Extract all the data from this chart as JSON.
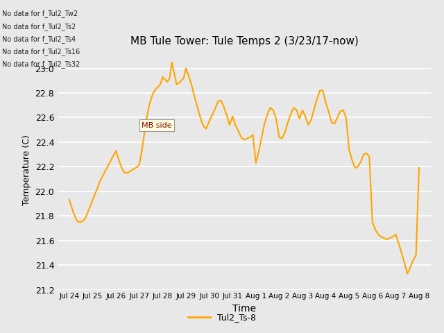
{
  "title": "MB Tule Tower: Tule Temps 2 (3/23/17-now)",
  "xlabel": "Time",
  "ylabel": "Temperature (C)",
  "line_color": "#FFA500",
  "line_label": "Tul2_Ts-8",
  "bg_color": "#e8e8e8",
  "ylim": [
    21.2,
    23.15
  ],
  "yticks": [
    21.2,
    21.4,
    21.6,
    21.8,
    22.0,
    22.2,
    22.4,
    22.6,
    22.8,
    23.0
  ],
  "no_data_labels": [
    "No data for f_Tul2_Tw2",
    "No data for f_Tul2_Ts2",
    "No data for f_Tul2_Ts4",
    "No data for f_Tul2_Ts16",
    "No data for f_Tul2_Ts32"
  ],
  "tooltip_text": "MB side",
  "x_tick_labels": [
    "Jul 24",
    "Jul 25",
    "Jul 26",
    "Jul 27",
    "Jul 28",
    "Jul 29",
    "Jul 30",
    "Jul 31",
    "Aug 1",
    "Aug 2",
    "Aug 3",
    "Aug 4",
    "Aug 5",
    "Aug 6",
    "Aug 7",
    "Aug 8"
  ],
  "x_fine": [
    0.0,
    0.08,
    0.17,
    0.25,
    0.33,
    0.42,
    0.5,
    0.58,
    0.67,
    0.75,
    0.83,
    0.92,
    1.0,
    1.08,
    1.17,
    1.25,
    1.33,
    1.42,
    1.5,
    1.58,
    1.67,
    1.75,
    1.83,
    1.92,
    2.0,
    2.08,
    2.17,
    2.25,
    2.33,
    2.42,
    2.5,
    2.58,
    2.67,
    2.75,
    2.83,
    2.92,
    3.0,
    3.1,
    3.2,
    3.3,
    3.4,
    3.5,
    3.6,
    3.7,
    3.8,
    3.9,
    4.0,
    4.1,
    4.2,
    4.3,
    4.4,
    4.5,
    4.6,
    4.7,
    4.8,
    4.9,
    5.0,
    5.12,
    5.25,
    5.37,
    5.5,
    5.62,
    5.75,
    5.87,
    6.0,
    6.12,
    6.25,
    6.37,
    6.5,
    6.62,
    6.75,
    6.87,
    7.0,
    7.12,
    7.25,
    7.37,
    7.5,
    7.62,
    7.75,
    7.87,
    8.0,
    8.12,
    8.25,
    8.37,
    8.5,
    8.62,
    8.75,
    8.87,
    9.0,
    9.12,
    9.25,
    9.37,
    9.5,
    9.62,
    9.75,
    9.87,
    10.0,
    10.12,
    10.25,
    10.37,
    10.5,
    10.62,
    10.75,
    10.87,
    11.0,
    11.12,
    11.25,
    11.37,
    11.5,
    11.62,
    11.75,
    11.87,
    12.0,
    12.12,
    12.25,
    12.37,
    12.5,
    12.62,
    12.75,
    12.87,
    13.0,
    13.12,
    13.25,
    13.37,
    13.5,
    13.62,
    13.75,
    13.87,
    14.0,
    14.12,
    14.25,
    14.37,
    14.5,
    14.62,
    14.75,
    14.87,
    15.0
  ],
  "y_fine": [
    21.93,
    21.88,
    21.83,
    21.79,
    21.76,
    21.75,
    21.75,
    21.76,
    21.78,
    21.81,
    21.85,
    21.89,
    21.93,
    21.97,
    22.01,
    22.05,
    22.09,
    22.12,
    22.15,
    22.18,
    22.21,
    22.24,
    22.27,
    22.3,
    22.33,
    22.28,
    22.23,
    22.19,
    22.16,
    22.15,
    22.15,
    22.16,
    22.17,
    22.18,
    22.19,
    22.2,
    22.22,
    22.32,
    22.45,
    22.58,
    22.68,
    22.75,
    22.8,
    22.83,
    22.85,
    22.87,
    22.93,
    22.91,
    22.89,
    22.92,
    23.05,
    22.96,
    22.87,
    22.88,
    22.9,
    22.92,
    23.0,
    22.94,
    22.86,
    22.77,
    22.68,
    22.6,
    22.53,
    22.51,
    22.57,
    22.62,
    22.67,
    22.73,
    22.74,
    22.69,
    22.62,
    22.54,
    22.61,
    22.54,
    22.49,
    22.44,
    22.42,
    22.43,
    22.44,
    22.46,
    22.23,
    22.32,
    22.44,
    22.55,
    22.63,
    22.68,
    22.66,
    22.59,
    22.44,
    22.43,
    22.48,
    22.56,
    22.63,
    22.68,
    22.66,
    22.59,
    22.66,
    22.61,
    22.54,
    22.58,
    22.67,
    22.75,
    22.82,
    22.82,
    22.72,
    22.65,
    22.56,
    22.55,
    22.6,
    22.65,
    22.66,
    22.6,
    22.34,
    22.26,
    22.19,
    22.2,
    22.24,
    22.3,
    22.31,
    22.28,
    21.75,
    21.69,
    21.65,
    21.63,
    21.62,
    21.61,
    21.62,
    21.63,
    21.65,
    21.58,
    21.5,
    21.42,
    21.33,
    21.38,
    21.44,
    21.48,
    22.19
  ]
}
